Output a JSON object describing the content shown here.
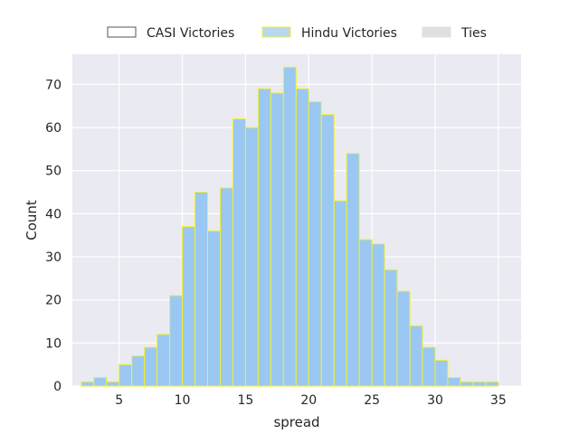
{
  "chart_data": {
    "type": "bar",
    "xlabel": "spread",
    "ylabel": "Count",
    "xlim": [
      1.3,
      36.8
    ],
    "ylim": [
      0,
      77
    ],
    "xticks": [
      5,
      10,
      15,
      20,
      25,
      30,
      35
    ],
    "yticks": [
      0,
      10,
      20,
      30,
      40,
      50,
      60,
      70
    ],
    "grid": true,
    "legend_position": "top-center",
    "bin_width": 1,
    "series": [
      {
        "name": "CASI Victories",
        "color": "#ffffff",
        "edgecolor": "#555555",
        "bins": [],
        "values": []
      },
      {
        "name": "Hindu Victories",
        "color": "#9bc8f2",
        "edgecolor": "#f2f22a",
        "bins": [
          2.5,
          3.5,
          4.5,
          5.5,
          6.5,
          7.5,
          8.5,
          9.5,
          10.5,
          11.5,
          12.5,
          13.5,
          14.5,
          15.5,
          16.5,
          17.5,
          18.5,
          19.5,
          20.5,
          21.5,
          22.5,
          23.5,
          24.5,
          25.5,
          26.5,
          27.5,
          28.5,
          29.5,
          30.5,
          31.5,
          32.5,
          33.5,
          34.5
        ],
        "values": [
          1,
          2,
          1,
          5,
          7,
          9,
          12,
          21,
          37,
          45,
          36,
          46,
          62,
          60,
          69,
          68,
          74,
          69,
          66,
          63,
          43,
          54,
          34,
          33,
          27,
          22,
          14,
          9,
          6,
          2,
          1,
          1,
          1
        ]
      },
      {
        "name": "Ties",
        "color": "#e0e0e0",
        "edgecolor": "#e0e0e0",
        "bins": [],
        "values": []
      }
    ]
  },
  "legend": {
    "items": [
      {
        "label": "CASI Victories",
        "fill": "#ffffff",
        "stroke": "#555555"
      },
      {
        "label": "Hindu Victories",
        "fill": "#b8d8f2",
        "stroke": "#f2f22a"
      },
      {
        "label": "Ties",
        "fill": "#e0e0e0",
        "stroke": "#e0e0e0"
      }
    ]
  },
  "style": {
    "plot_background": "#eaeaf2",
    "grid_color": "#ffffff"
  }
}
